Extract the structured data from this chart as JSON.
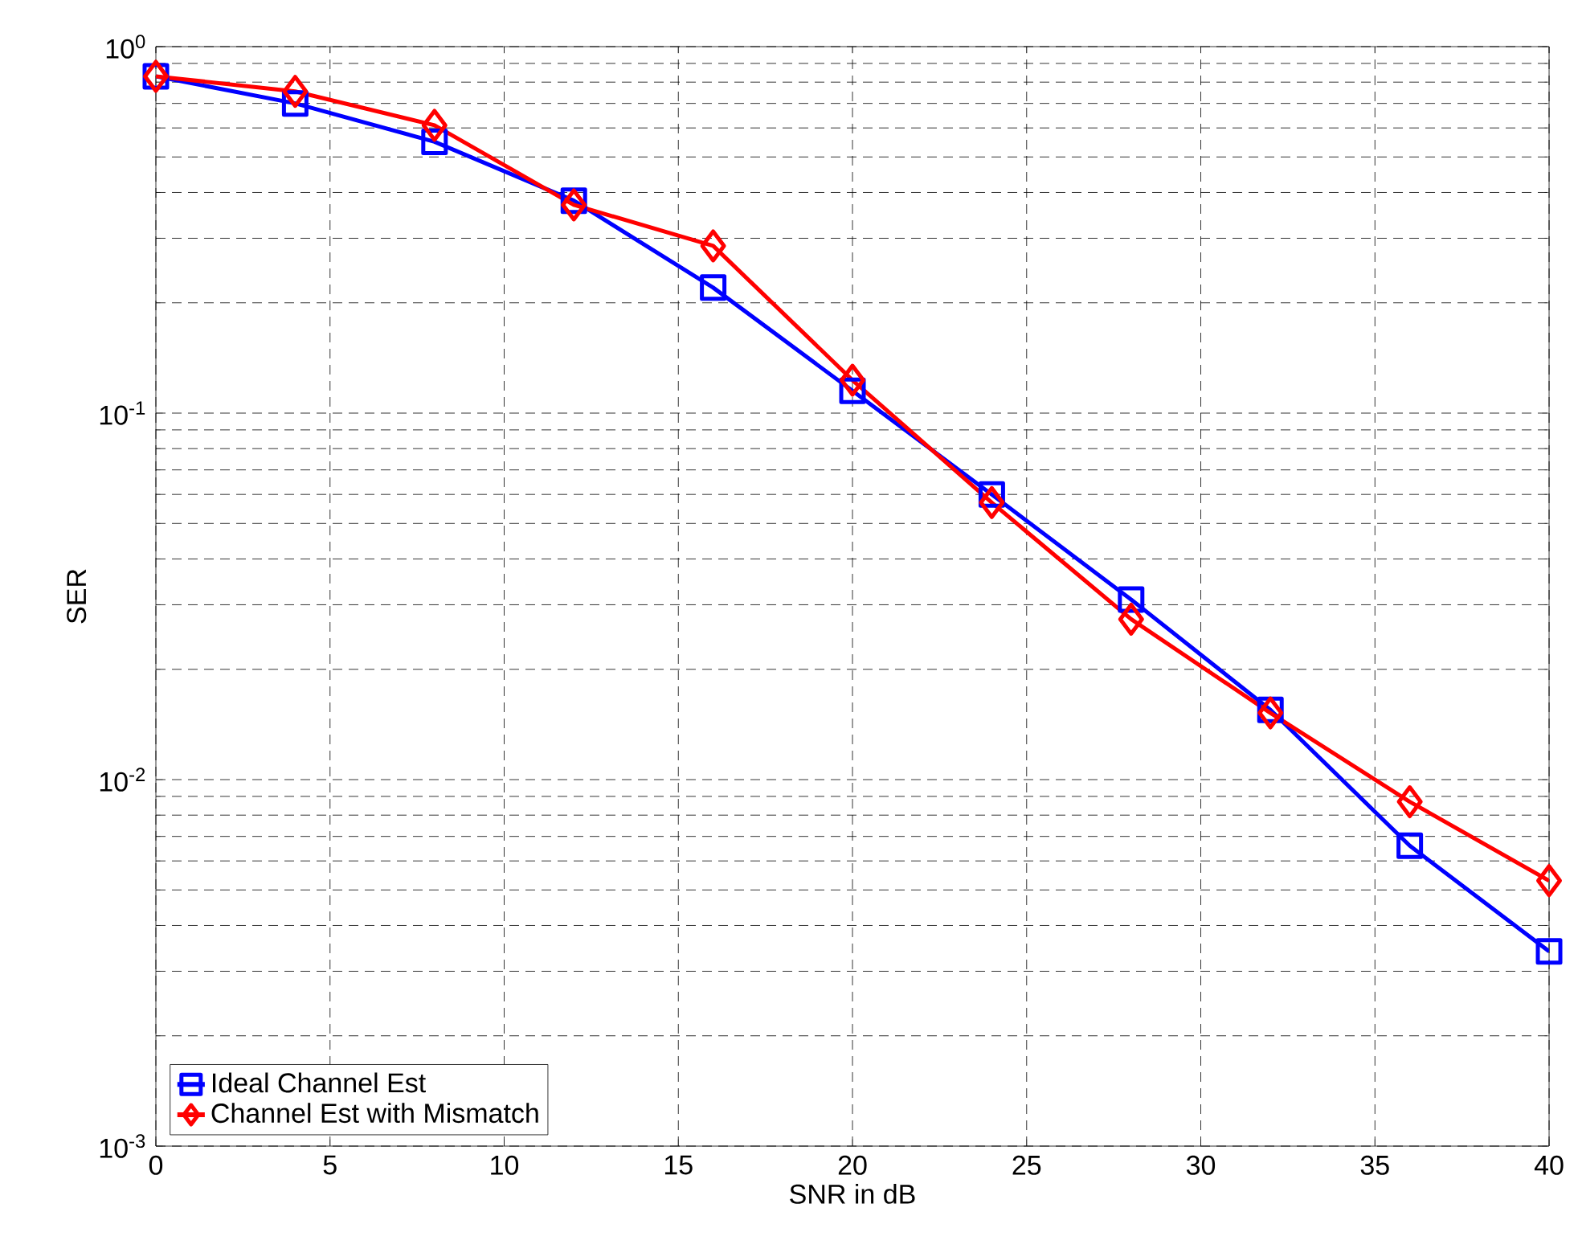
{
  "chart_data": {
    "type": "line",
    "xlabel": "SNR in dB",
    "ylabel": "SER",
    "log": "y",
    "grid": true,
    "legend": "bottom left",
    "x": [
      0,
      4,
      8,
      12,
      16,
      20,
      24,
      28,
      32,
      36,
      40
    ],
    "xlim": [
      0,
      40
    ],
    "xticks": [
      0,
      5,
      10,
      15,
      20,
      25,
      30,
      35,
      40
    ],
    "ylim": [
      0.001,
      1
    ],
    "yticks": [
      {
        "value": 0.001,
        "label": "10$^{-3}$"
      },
      {
        "value": 0.01,
        "label": "10$^{-2}$"
      },
      {
        "value": 0.1,
        "label": "10$^{-1}$"
      },
      {
        "value": 1,
        "label": "10$^{0}$"
      }
    ],
    "series": [
      {
        "name": "Ideal Channel Est",
        "color": "#0000ff",
        "marker": "square",
        "values": [
          0.83,
          0.7,
          0.55,
          0.38,
          0.22,
          0.115,
          0.06,
          0.031,
          0.0155,
          0.0066,
          0.0034
        ]
      },
      {
        "name": "Channel Est with Mismatch",
        "color": "#ff0000",
        "marker": "diamond",
        "values": [
          0.83,
          0.755,
          0.61,
          0.37,
          0.286,
          0.123,
          0.057,
          0.0274,
          0.0152,
          0.0087,
          0.0053
        ]
      }
    ]
  }
}
